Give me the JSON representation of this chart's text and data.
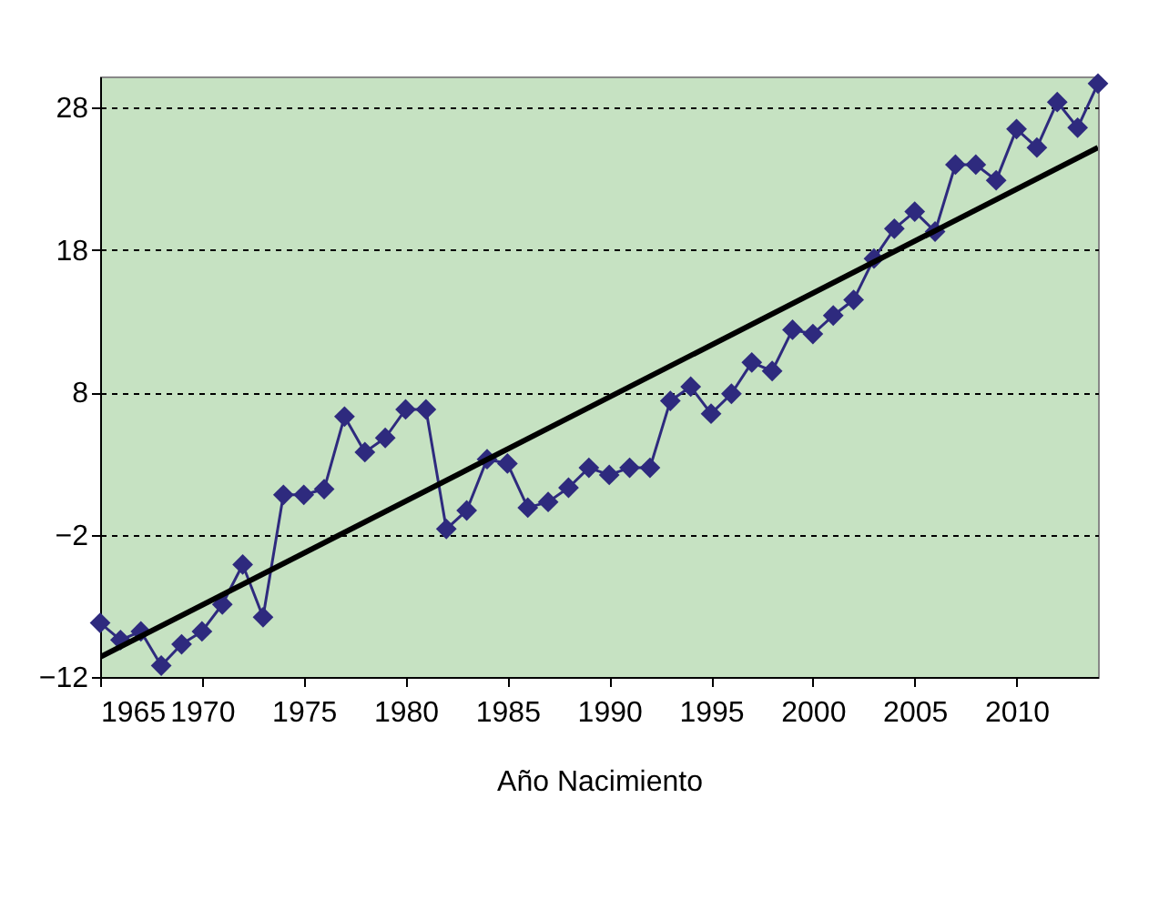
{
  "chart_data": {
    "type": "line",
    "xlabel": "Año Nacimiento",
    "xlim": [
      1965,
      2014
    ],
    "xticks": [
      1965,
      1970,
      1975,
      1980,
      1985,
      1990,
      1995,
      2000,
      2005,
      2010
    ],
    "ylim": [
      -12,
      30.2
    ],
    "yticks": [
      -12,
      -2,
      8,
      18,
      28
    ],
    "grid": "y",
    "series": [
      {
        "type": "line",
        "color": "#2e2a7e",
        "marker": "diamond",
        "line_style": "solid",
        "x": [
          1965,
          1966,
          1967,
          1968,
          1969,
          1970,
          1971,
          1972,
          1973,
          1974,
          1975,
          1976,
          1977,
          1978,
          1979,
          1980,
          1981,
          1982,
          1983,
          1984,
          1985,
          1986,
          1987,
          1988,
          1989,
          1990,
          1991,
          1992,
          1993,
          1994,
          1995,
          1996,
          1997,
          1998,
          1999,
          2000,
          2001,
          2002,
          2003,
          2004,
          2005,
          2006,
          2007,
          2008,
          2009,
          2010,
          2011,
          2012,
          2013,
          2014
        ],
        "values": [
          -8.2,
          -9.4,
          -8.8,
          -11.2,
          -9.7,
          -8.8,
          -6.9,
          -4.1,
          -7.8,
          0.8,
          0.8,
          1.2,
          6.3,
          3.8,
          4.8,
          6.8,
          6.8,
          -1.6,
          -0.3,
          3.3,
          3.0,
          -0.1,
          0.3,
          1.3,
          2.7,
          2.2,
          2.7,
          2.7,
          7.4,
          8.4,
          6.5,
          7.9,
          10.1,
          9.5,
          12.4,
          12.1,
          13.4,
          14.5,
          17.4,
          19.5,
          20.7,
          19.3,
          24.0,
          24.0,
          22.9,
          26.5,
          25.2,
          28.4,
          26.6,
          29.7
        ]
      },
      {
        "type": "line",
        "color": "#000000",
        "marker": "none",
        "line_style": "solid",
        "x": [
          1965,
          2014
        ],
        "values": [
          -10.6,
          25.2
        ]
      }
    ]
  }
}
